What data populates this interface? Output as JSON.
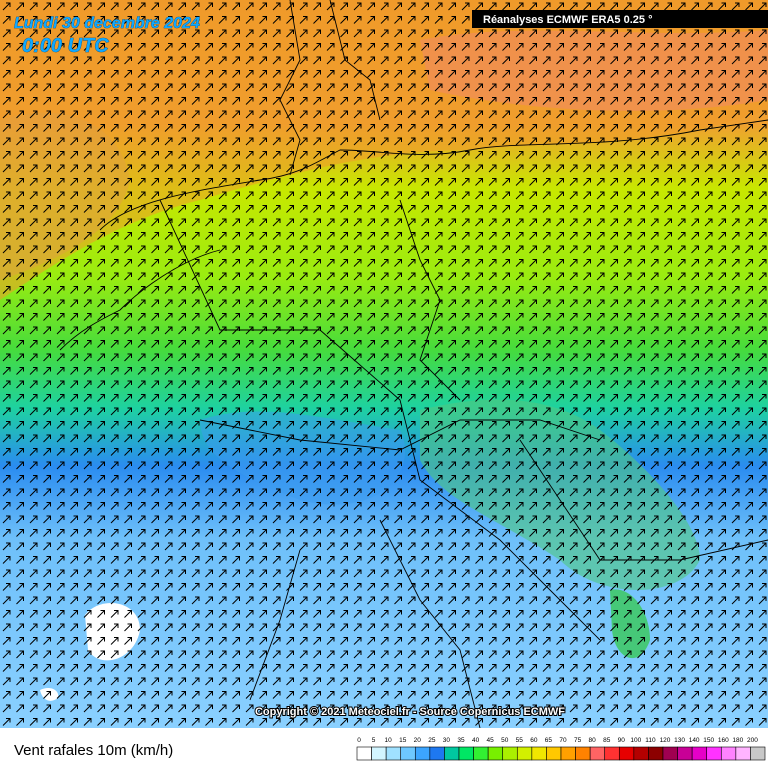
{
  "header": {
    "date": "Lundi 30 decembre 2024",
    "time": "0:00 UTC",
    "source_box": "Réanalyses ECMWF ERA5 0.25 °"
  },
  "footer": {
    "copyright": "Copyright © 2021 Meteociel.fr - Source Copernicus ECMWF",
    "variable": "Vent rafales 10m (km/h)"
  },
  "legend": {
    "labels": [
      0,
      5,
      10,
      15,
      20,
      25,
      30,
      35,
      40,
      45,
      50,
      55,
      60,
      65,
      70,
      75,
      80,
      85,
      90,
      100,
      110,
      120,
      130,
      140,
      150,
      160,
      180,
      200
    ],
    "colors": [
      "#ffffff",
      "#d2f5ff",
      "#a0e1ff",
      "#6ec8ff",
      "#3ca5ff",
      "#1e78f0",
      "#00c8a0",
      "#00e664",
      "#32f032",
      "#78f000",
      "#aaf000",
      "#d2f000",
      "#f0e600",
      "#ffc800",
      "#ffa000",
      "#ff8200",
      "#ff6464",
      "#ff3232",
      "#e60000",
      "#b40000",
      "#8c0000",
      "#a00050",
      "#c80096",
      "#e600c8",
      "#ff32ff",
      "#ff82ff",
      "#ffb4ff",
      "#c8c8c8"
    ]
  }
}
